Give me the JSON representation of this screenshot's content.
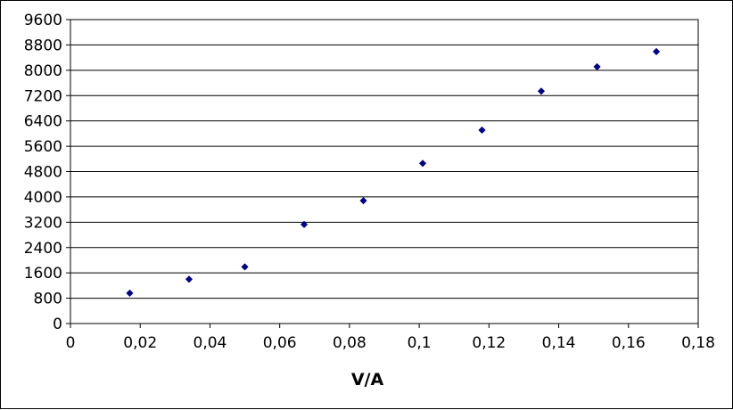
{
  "chart_data": {
    "type": "scatter",
    "title": "",
    "xlabel": "V/A",
    "ylabel": "",
    "xlim": [
      0,
      0.18
    ],
    "ylim": [
      0,
      9600
    ],
    "x_ticks": [
      0,
      0.02,
      0.04,
      0.06,
      0.08,
      0.1,
      0.12,
      0.14,
      0.16,
      0.18
    ],
    "x_tick_labels": [
      "0",
      "0,02",
      "0,04",
      "0,06",
      "0,08",
      "0,1",
      "0,12",
      "0,14",
      "0,16",
      "0,18"
    ],
    "y_ticks": [
      0,
      800,
      1600,
      2400,
      3200,
      4000,
      4800,
      5600,
      6400,
      7200,
      8000,
      8800,
      9600
    ],
    "y_tick_labels": [
      "0",
      "800",
      "1600",
      "2400",
      "3200",
      "4000",
      "4800",
      "5600",
      "6400",
      "7200",
      "8000",
      "8800",
      "9600"
    ],
    "grid": "horizontal",
    "legend": "none",
    "marker_color": "#000080",
    "series": [
      {
        "x": [
          0.017,
          0.034,
          0.05,
          0.067,
          0.084,
          0.101,
          0.118,
          0.135,
          0.151,
          0.168
        ],
        "y": [
          960,
          1400,
          1790,
          3130,
          3880,
          5060,
          6110,
          7340,
          8110,
          8590
        ]
      }
    ]
  }
}
